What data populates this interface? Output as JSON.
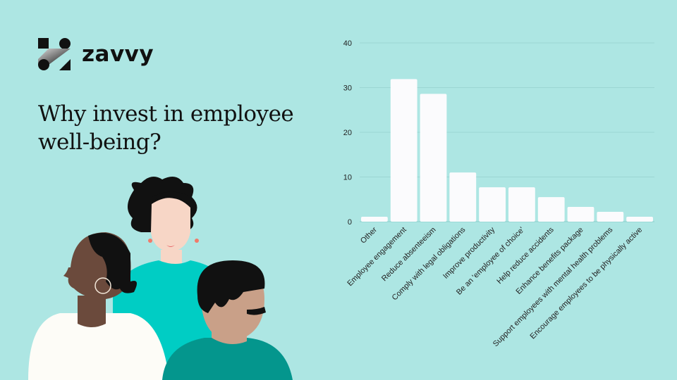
{
  "brand": {
    "name": "zavvy"
  },
  "heading": "Why invest in employee well-being?",
  "colors": {
    "background": "#ade6e3",
    "bar": "#fbfbfd",
    "grid": "#9bd6d3"
  },
  "chart_data": {
    "type": "bar",
    "categories": [
      "Other",
      "Employee engagement",
      "Reduce absenteeism",
      "Comply with legal obligations",
      "Improve productivity",
      "Be an 'employee of choice'",
      "Help reduce accidents",
      "Enhance benefits package",
      "Support employees with mental health problems",
      "Encourage employees to be physically active"
    ],
    "values": [
      1.1,
      31.9,
      28.6,
      11.0,
      7.7,
      7.7,
      5.5,
      3.3,
      2.2,
      1.1
    ],
    "yticks": [
      "0",
      "10",
      "20",
      "30",
      "40"
    ],
    "ylim": [
      0,
      40
    ],
    "grid": true,
    "title": "",
    "xlabel": "",
    "ylabel": ""
  }
}
